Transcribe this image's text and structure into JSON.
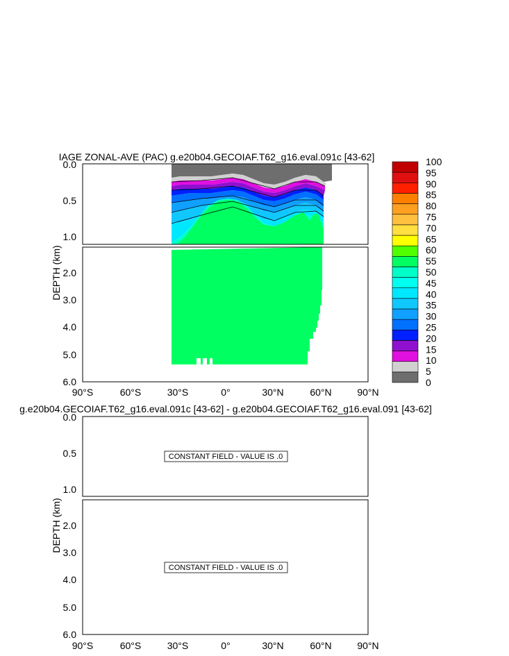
{
  "chart_data": [
    {
      "type": "contour",
      "title": "IAGE ZONAL-AVE (PAC) g.e20b04.GECOIAF.T62_g16.eval.091c [43-62]",
      "ylabel": "DEPTH (km)",
      "x_ticks": [
        "90°S",
        "60°S",
        "30°S",
        "0°",
        "30°N",
        "60°N",
        "90°N"
      ],
      "xlim": [
        -90,
        90
      ],
      "upper_yticks": [
        "0.0",
        "0.5",
        "1.0"
      ],
      "upper_ylim": [
        0,
        1.1
      ],
      "lower_yticks": [
        "2.0",
        "3.0",
        "4.0",
        "5.0",
        "6.0"
      ],
      "lower_ylim": [
        1.1,
        6.0
      ],
      "colorbar": {
        "labels": [
          "0",
          "5",
          "10",
          "15",
          "20",
          "25",
          "30",
          "35",
          "40",
          "45",
          "50",
          "55",
          "60",
          "65",
          "70",
          "75",
          "80",
          "85",
          "90",
          "95",
          "100"
        ],
        "colors": [
          "#6e6e6e",
          "#d0d0d0",
          "#e010e0",
          "#9010d0",
          "#0020ff",
          "#0070ff",
          "#10a0ff",
          "#10c8ff",
          "#00e8ff",
          "#00ffee",
          "#00ffc8",
          "#00ff60",
          "#50ff00",
          "#ffff00",
          "#ffe040",
          "#ffc040",
          "#ffa020",
          "#ff8000",
          "#ff2000",
          "#e01010",
          "#c00000"
        ]
      },
      "data_extent_lat": [
        -34,
        66
      ],
      "age_range": [
        0,
        55
      ]
    },
    {
      "type": "contour",
      "title": "g.e20b04.GECOIAF.T62_g16.eval.091c [43-62] - g.e20b04.GECOIAF.T62_g16.eval.091 [43-62]",
      "ylabel": "DEPTH (km)",
      "x_ticks": [
        "90°S",
        "60°S",
        "30°S",
        "0°",
        "30°N",
        "60°N",
        "90°N"
      ],
      "upper_yticks": [
        "0.0",
        "0.5",
        "1.0"
      ],
      "lower_yticks": [
        "2.0",
        "3.0",
        "4.0",
        "5.0",
        "6.0"
      ],
      "constant_label": "CONSTANT FIELD - VALUE IS .0"
    }
  ]
}
